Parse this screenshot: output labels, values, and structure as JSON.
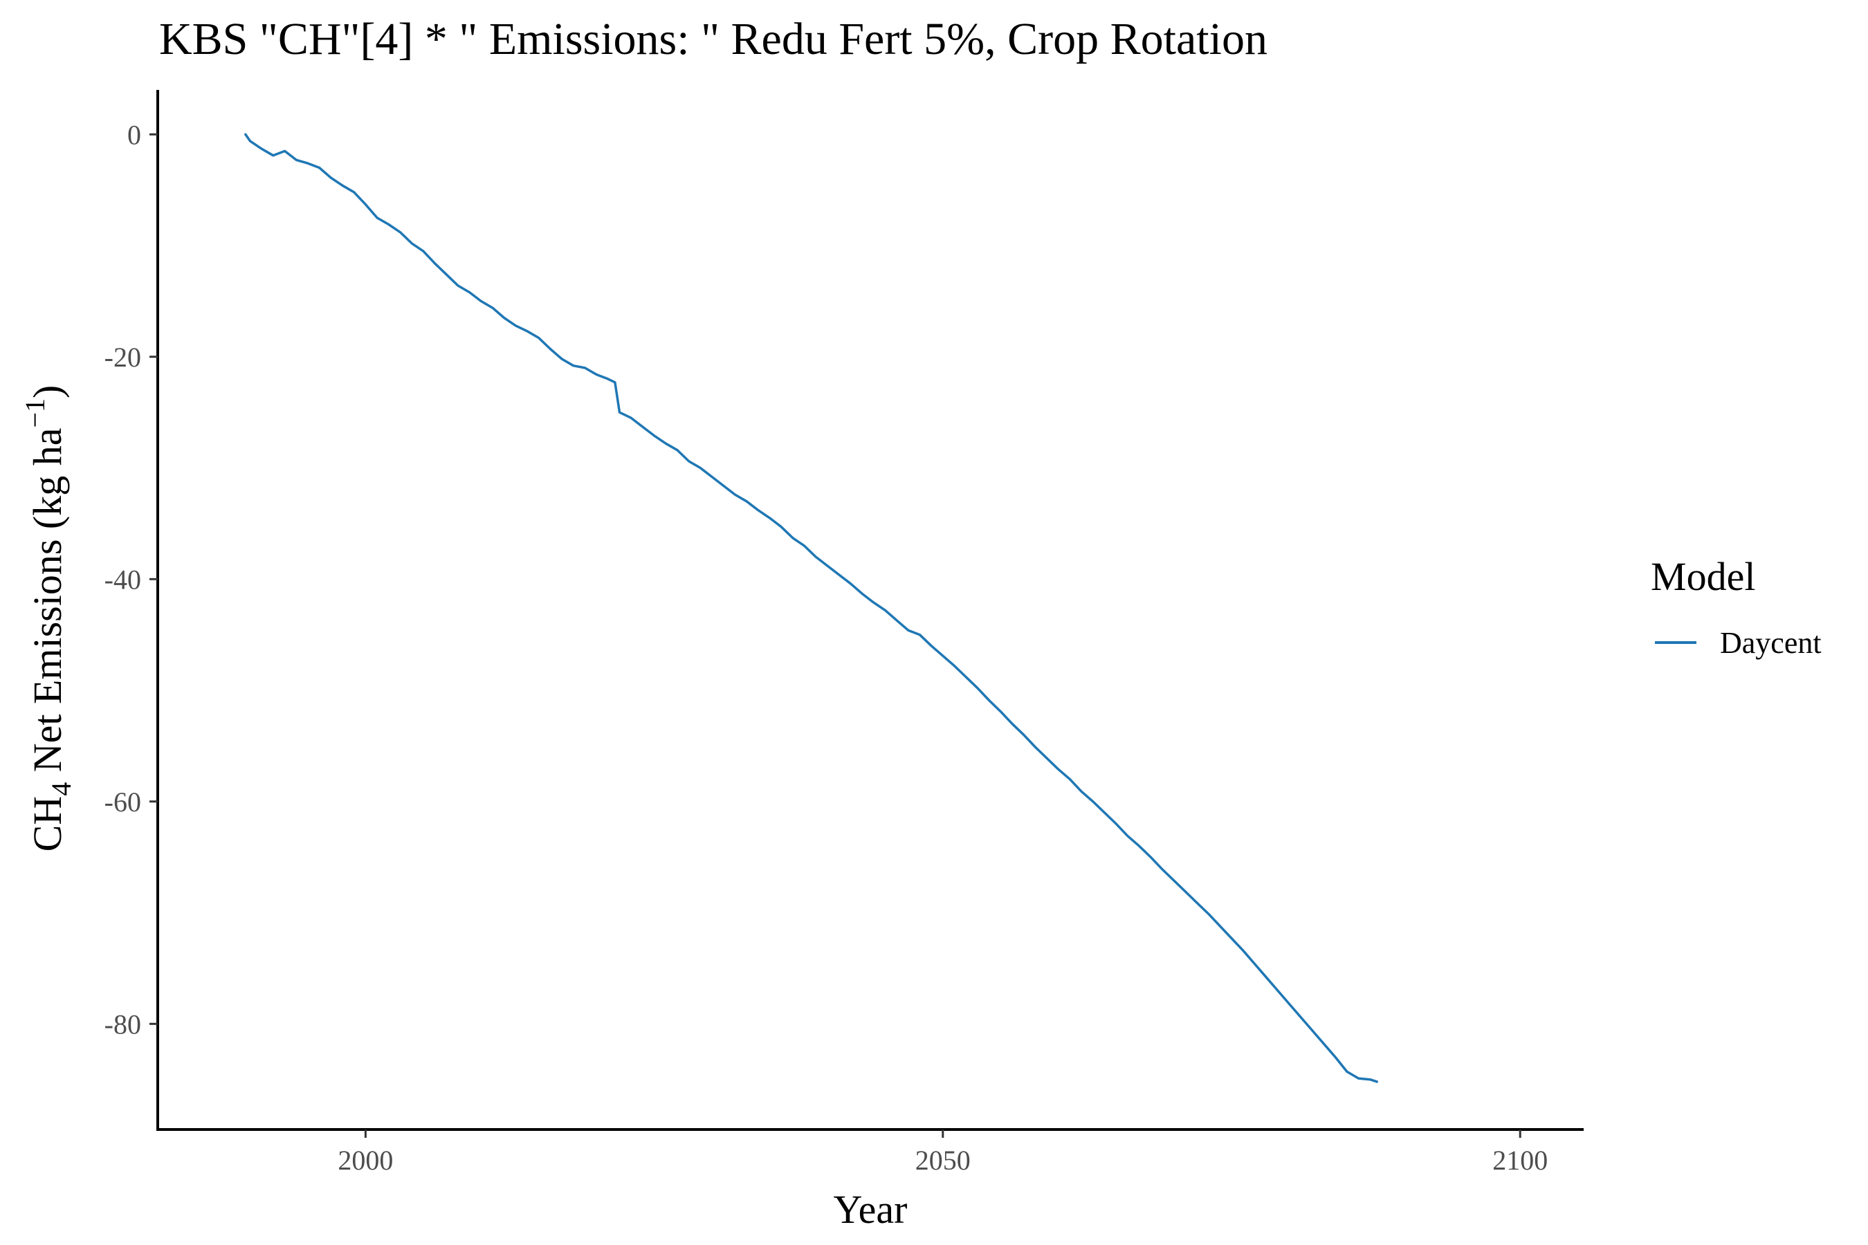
{
  "chart_data": {
    "type": "line",
    "title": "KBS \"CH\"[4] * \" Emissions: \" Redu Fert 5%, Crop Rotation",
    "xlabel": "Year",
    "ylabel": {
      "prefix": "CH",
      "subscript": "4",
      "middle": " Net Emissions (kg ha",
      "superscript": "−1",
      "suffix": ")"
    },
    "xlim": [
      1982,
      2105.5
    ],
    "ylim": [
      -89.5,
      4
    ],
    "x_ticks": [
      2000,
      2050,
      2100
    ],
    "x_tick_labels": [
      "2000",
      "2050",
      "2100"
    ],
    "y_ticks": [
      0,
      -20,
      -40,
      -60,
      -80
    ],
    "y_tick_labels": [
      "0",
      "-20",
      "-40",
      "-60",
      "-80"
    ],
    "grid": false,
    "legend": {
      "title": "Model",
      "position": "right"
    },
    "series": [
      {
        "name": "Daycent",
        "color": "#1f77b4",
        "x": [
          1989.6,
          1990,
          1991,
          1992,
          1993,
          1994,
          1995,
          1996,
          1997,
          1998,
          1999,
          2000,
          2001,
          2002,
          2003,
          2004,
          2005,
          2006,
          2007,
          2008,
          2009,
          2010,
          2011,
          2012,
          2013,
          2014,
          2015,
          2016,
          2017,
          2018,
          2019,
          2020,
          2021,
          2021.6,
          2022,
          2023,
          2024,
          2025,
          2026,
          2027,
          2028,
          2029,
          2030,
          2031,
          2032,
          2033,
          2034,
          2035,
          2036,
          2037,
          2038,
          2039,
          2040,
          2041,
          2042,
          2043,
          2044,
          2045,
          2046,
          2047,
          2048,
          2049,
          2050,
          2051,
          2052,
          2053,
          2054,
          2055,
          2056,
          2057,
          2058,
          2059,
          2060,
          2061,
          2062,
          2063,
          2064,
          2065,
          2066,
          2067,
          2068,
          2069,
          2070,
          2071,
          2072,
          2073,
          2074,
          2075,
          2076,
          2077,
          2078,
          2079,
          2080,
          2081,
          2082,
          2083,
          2084,
          2085,
          2086,
          2087,
          2087.6
        ],
        "y": [
          0.0,
          -0.6,
          -1.3,
          -1.9,
          -1.5,
          -2.3,
          -2.6,
          -3.0,
          -3.9,
          -4.6,
          -5.2,
          -6.3,
          -7.5,
          -8.1,
          -8.8,
          -9.8,
          -10.5,
          -11.6,
          -12.6,
          -13.6,
          -14.2,
          -15.0,
          -15.6,
          -16.5,
          -17.2,
          -17.7,
          -18.3,
          -19.3,
          -20.2,
          -20.8,
          -21.0,
          -21.6,
          -22.0,
          -22.3,
          -25.0,
          -25.5,
          -26.3,
          -27.1,
          -27.8,
          -28.4,
          -29.4,
          -30.0,
          -30.8,
          -31.6,
          -32.4,
          -33.0,
          -33.8,
          -34.5,
          -35.3,
          -36.3,
          -37.0,
          -38.0,
          -38.8,
          -39.6,
          -40.4,
          -41.3,
          -42.1,
          -42.8,
          -43.7,
          -44.6,
          -45.0,
          -46.0,
          -46.9,
          -47.8,
          -48.8,
          -49.8,
          -50.9,
          -51.9,
          -53.0,
          -54.0,
          -55.1,
          -56.1,
          -57.1,
          -58.0,
          -59.1,
          -60.0,
          -61.0,
          -62.0,
          -63.1,
          -64.0,
          -65.0,
          -66.1,
          -67.1,
          -68.1,
          -69.1,
          -70.1,
          -71.2,
          -72.3,
          -73.4,
          -74.6,
          -75.8,
          -77.0,
          -78.2,
          -79.4,
          -80.6,
          -81.8,
          -83.0,
          -84.3,
          -84.9,
          -85.0,
          -85.2
        ]
      }
    ]
  }
}
